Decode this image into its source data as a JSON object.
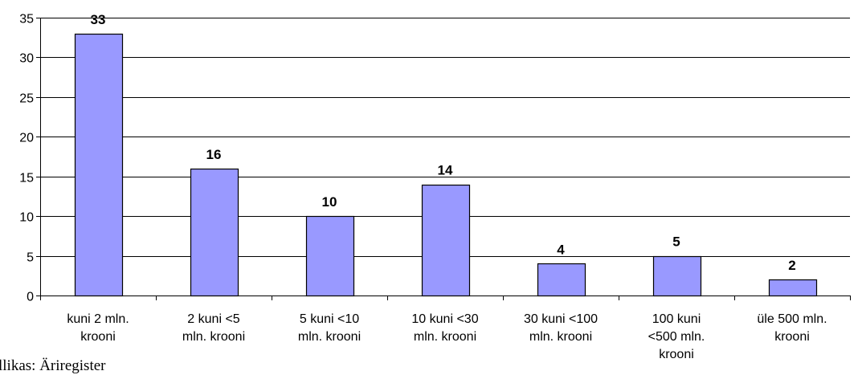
{
  "chart_data": {
    "type": "bar",
    "categories": [
      [
        "kuni 2 mln.",
        "krooni"
      ],
      [
        "2 kuni <5",
        "mln. krooni"
      ],
      [
        "5 kuni <10",
        "mln. krooni"
      ],
      [
        "10 kuni <30",
        "mln. krooni"
      ],
      [
        "30 kuni <100",
        "mln. krooni"
      ],
      [
        "100 kuni",
        "<500 mln.",
        "krooni"
      ],
      [
        "üle 500 mln.",
        "krooni"
      ]
    ],
    "values": [
      33,
      16,
      10,
      14,
      4,
      5,
      2
    ],
    "ylim": [
      0,
      35
    ],
    "yticks": [
      0,
      5,
      10,
      15,
      20,
      25,
      30,
      35
    ],
    "grid": true,
    "data_labels": true,
    "colors": {
      "bar_fill": "#9999ff",
      "bar_stroke": "#000000",
      "grid": "#000000"
    }
  },
  "source_note": "llikas: Äriregister"
}
